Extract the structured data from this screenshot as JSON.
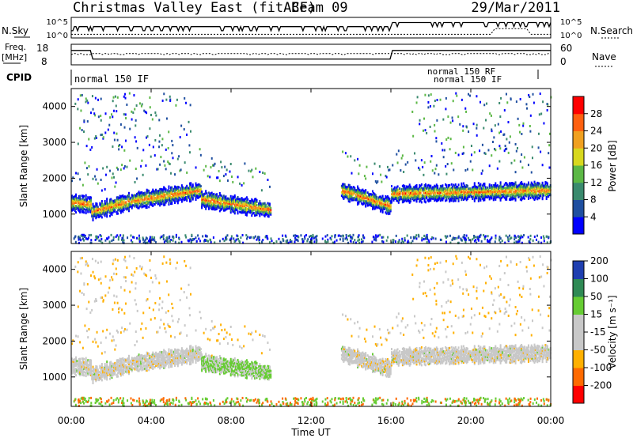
{
  "header": {
    "station": "Christmas Valley East (fitACF)",
    "beam": "Beam 09",
    "date": "29/Mar/2011"
  },
  "small_panels": {
    "nsky_label": "N.Sky",
    "nsearch_label": "N.Search",
    "freq_label": "Freq.",
    "freq_unit": "[MHz]",
    "nave_label": "Nave",
    "cpid_label": "CPID",
    "noise_ticks_left": [
      "10^5",
      "10^0"
    ],
    "noise_ticks_right": [
      "10^5",
      "10^0"
    ],
    "freq_ticks": [
      "18",
      "8"
    ],
    "nave_ticks": [
      "60",
      "0"
    ],
    "cpid_names": [
      "normal 150 IF",
      "normal 150 RF"
    ]
  },
  "colors": {
    "power": [
      "#0000ff",
      "#1f4fa0",
      "#3a8a6e",
      "#5cb845",
      "#d8d81e",
      "#f0a020",
      "#ff6010",
      "#ff0000"
    ],
    "velocity": [
      "#ff0000",
      "#ff6a00",
      "#ffb000",
      "#c8c8c8",
      "#c8c8c8",
      "#66cc33",
      "#2f8a55",
      "#1f3fb0"
    ],
    "ground_scatter": "#c8c8c8"
  },
  "chart_data": [
    {
      "type": "heatmap",
      "name": "power",
      "ylabel": "Slant Range [km]",
      "xlabel": "Time UT",
      "x_ticks": [
        "00:00",
        "04:00",
        "08:00",
        "12:00",
        "16:00",
        "20:00",
        "00:00"
      ],
      "y_ticks": [
        1000,
        2000,
        3000,
        4000
      ],
      "ylim": [
        180,
        4500
      ],
      "xlim_hours": [
        0,
        24
      ],
      "colorbar_label": "Power [dB]",
      "colorbar_ticks": [
        4,
        8,
        12,
        16,
        20,
        24,
        28
      ],
      "scatter_bands": [
        {
          "t0": 0.0,
          "t1": 1.0,
          "r0": 1350,
          "r1": 1300
        },
        {
          "t0": 1.0,
          "t1": 3.0,
          "r0": 1100,
          "r1": 1400
        },
        {
          "t0": 3.0,
          "t1": 6.5,
          "r0": 1400,
          "r1": 1700
        },
        {
          "t0": 6.5,
          "t1": 10.0,
          "r0": 1450,
          "r1": 1150
        },
        {
          "t0": 13.5,
          "t1": 16.0,
          "r0": 1700,
          "r1": 1250
        },
        {
          "t0": 16.0,
          "t1": 24.0,
          "r0": 1600,
          "r1": 1700
        }
      ]
    },
    {
      "type": "heatmap",
      "name": "velocity",
      "ylabel": "Slant Range [km]",
      "xlabel": "Time UT",
      "x_ticks": [
        "00:00",
        "04:00",
        "08:00",
        "12:00",
        "16:00",
        "20:00",
        "00:00"
      ],
      "y_ticks": [
        1000,
        2000,
        3000,
        4000
      ],
      "ylim": [
        180,
        4500
      ],
      "xlim_hours": [
        0,
        24
      ],
      "colorbar_label": "Velocity [m s⁻¹]",
      "colorbar_ticks": [
        -200,
        -100,
        -50,
        -15,
        15,
        50,
        100,
        200
      ]
    }
  ]
}
